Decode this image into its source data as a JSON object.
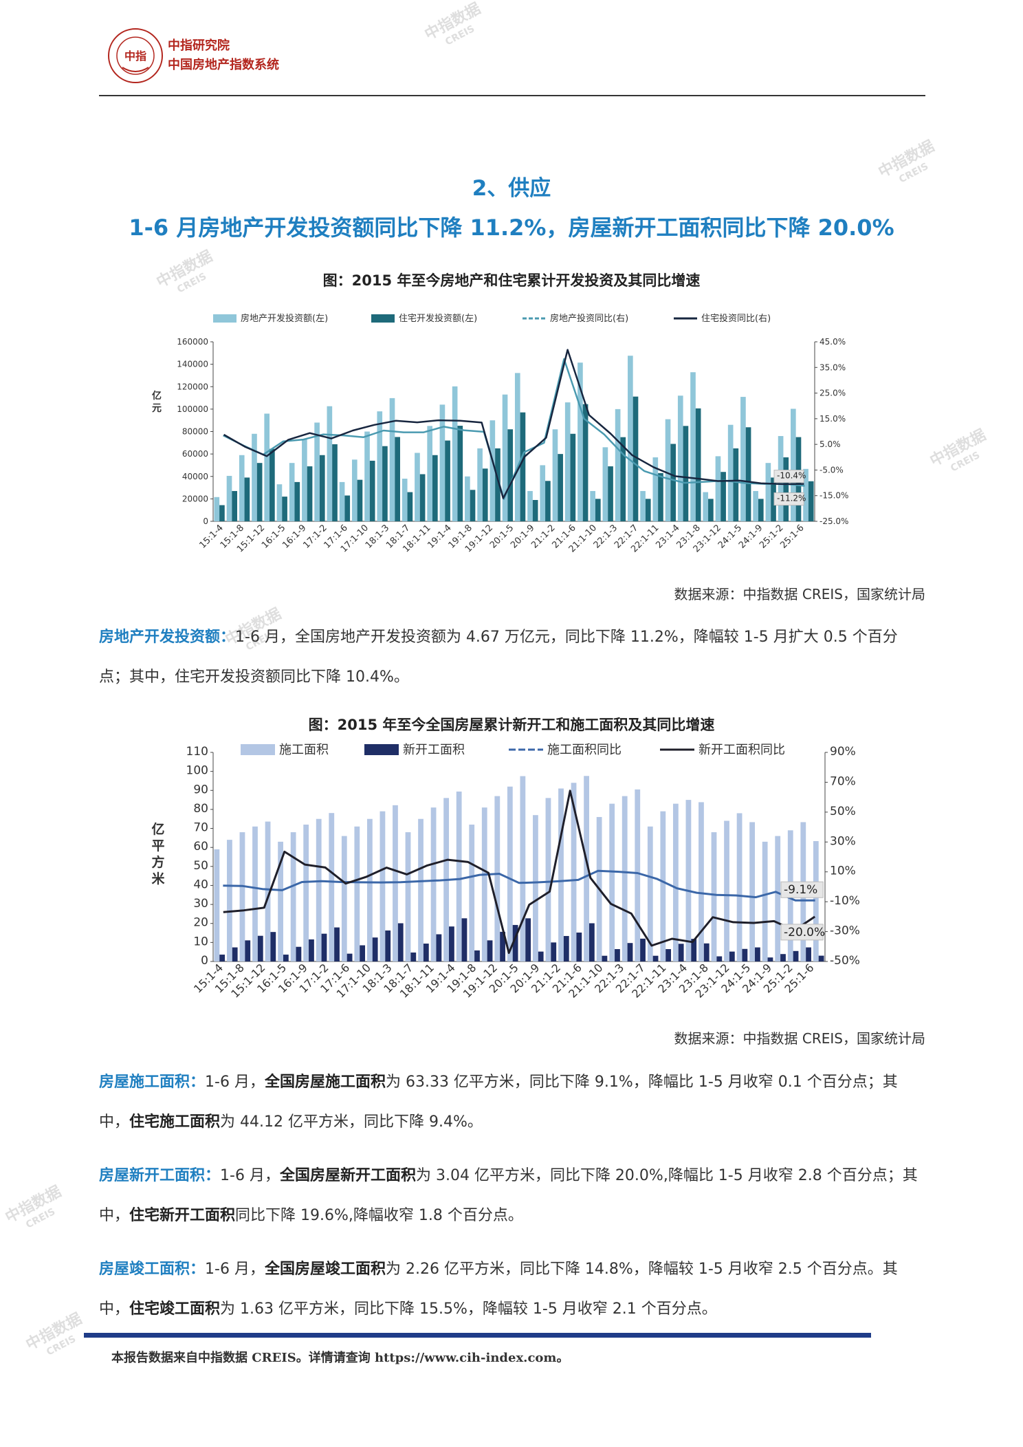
{
  "header": {
    "org_line1": "中指研究院",
    "org_line2": "中国房地产指数系统",
    "logo_text": "中指",
    "logo_ring_text": "CHINA INDEX ACADEMY"
  },
  "watermark": {
    "main": "中指数据",
    "sub": "CREIS"
  },
  "section": {
    "title": "2、供应",
    "headline": "1-6 月房地产开发投资额同比下降 11.2%，房屋新开工面积同比下降 20.0%"
  },
  "colors": {
    "accent_blue": "#1f7fc0",
    "logo_red": "#b3261e",
    "footer_bar": "#1f3c88"
  },
  "figure1": {
    "title": "图：2015 年至今房地产和住宅累计开发投资及其同比增速",
    "source": "数据来源：中指数据 CREIS，国家统计局",
    "chart_data": {
      "type": "bar",
      "legend": [
        "房地产开发投资额(左)",
        "住宅开发投资额(左)",
        "房地产投资同比(右)",
        "住宅投资同比(右)"
      ],
      "ylabel": "亿元",
      "y_ticks": [
        "0",
        "20000",
        "40000",
        "60000",
        "80000",
        "100000",
        "120000",
        "140000",
        "160000"
      ],
      "y2_ticks": [
        "-25.0%",
        "-15.0%",
        "-5.0%",
        "5.0%",
        "15.0%",
        "25.0%",
        "35.0%",
        "45.0%"
      ],
      "ylim": [
        0,
        160000
      ],
      "y2lim": [
        -25,
        45
      ],
      "x_ticks": [
        "15:1-4",
        "15:1-8",
        "15:1-12",
        "16:1-5",
        "16:1-9",
        "17:1-2",
        "17:1-6",
        "17:1-10",
        "18:1-3",
        "18:1-7",
        "18:1-11",
        "19:1-4",
        "19:1-8",
        "19:1-12",
        "20:1-5",
        "20:1-9",
        "21:1-2",
        "21:1-6",
        "21:1-10",
        "22:1-3",
        "22:1-7",
        "22:1-11",
        "23:1-4",
        "23:1-8",
        "23:1-12",
        "24:1-5",
        "24:1-9",
        "25:1-2",
        "25:1-6"
      ],
      "annotations": [
        "-10.4%",
        "-11.2%"
      ],
      "series": [
        {
          "name": "房地产开发投资额(左)",
          "values": [
            21600,
            40500,
            59000,
            78000,
            95979,
            33000,
            52000,
            73000,
            88000,
            102581,
            35000,
            55000,
            80000,
            98000,
            109799,
            38000,
            61000,
            85000,
            104000,
            120264,
            40000,
            65000,
            90000,
            113000,
            132194,
            27000,
            50000,
            82000,
            106000,
            141443,
            27000,
            66000,
            100000,
            147602,
            27000,
            57000,
            91000,
            112000,
            132895,
            26000,
            58000,
            86000,
            110913,
            27000,
            52000,
            76000,
            100280,
            46700
          ]
        },
        {
          "name": "住宅开发投资额(左)",
          "values": [
            14400,
            27000,
            39000,
            52000,
            64595,
            22000,
            35000,
            49000,
            59000,
            68704,
            23000,
            37000,
            54000,
            67000,
            75148,
            26000,
            42000,
            59000,
            72000,
            85192,
            28000,
            47000,
            65000,
            82000,
            97071,
            19000,
            36000,
            60000,
            78000,
            104446,
            20000,
            49000,
            75000,
            111173,
            20000,
            43000,
            69000,
            85000,
            100646,
            20000,
            44000,
            65000,
            83820,
            20000,
            39000,
            57000,
            75039,
            35700
          ]
        },
        {
          "name": "房地产投资同比(右)",
          "values": [
            8.5,
            4.6,
            1.0,
            6.2,
            6.9,
            8.9,
            8.5,
            7.8,
            10.4,
            9.7,
            9.7,
            11.9,
            10.5,
            9.9,
            -16.3,
            1.9,
            5.6,
            38.3,
            15.0,
            8.9,
            0.7,
            -5.4,
            -8.0,
            -10.0,
            -9.6,
            -9.1,
            -10.1,
            -10.4,
            -10.4,
            -11.2
          ]
        },
        {
          "name": "住宅投资同比(右)",
          "values": [
            8.8,
            4.0,
            0.4,
            6.8,
            9.4,
            7.3,
            10.4,
            12.6,
            14.2,
            13.6,
            14.4,
            14.2,
            13.5,
            -16.0,
            0.2,
            7.6,
            41.9,
            16.4,
            9.2,
            0.8,
            -3.9,
            -7.4,
            -8.3,
            -9.3,
            -9.1,
            -10.2,
            -10.5,
            -10.4
          ]
        }
      ]
    }
  },
  "para1": {
    "lead": "房地产开发投资额：",
    "text": "1-6 月，全国房地产开发投资额为 4.67 万亿元，同比下降 11.2%，降幅较 1-5 月扩大 0.5 个百分点；其中，住宅开发投资额同比下降 10.4%。"
  },
  "figure2": {
    "title": "图：2015 年至今全国房屋累计新开工和施工面积及其同比增速",
    "source": "数据来源：中指数据 CREIS，国家统计局",
    "chart_data": {
      "type": "bar",
      "legend": [
        "施工面积",
        "新开工面积",
        "施工面积同比",
        "新开工面积同比"
      ],
      "ylabel": "亿平方米",
      "y_ticks": [
        "0",
        "10",
        "20",
        "30",
        "40",
        "50",
        "60",
        "70",
        "80",
        "90",
        "100",
        "110"
      ],
      "y2_ticks": [
        "-50%",
        "-30%",
        "-10%",
        "10%",
        "30%",
        "50%",
        "70%",
        "90%"
      ],
      "ylim": [
        0,
        110
      ],
      "y2lim": [
        -50,
        90
      ],
      "x_ticks": [
        "15:1-4",
        "15:1-8",
        "15:1-12",
        "16:1-5",
        "16:1-9",
        "17:1-2",
        "17:1-6",
        "17:1-10",
        "18:1-3",
        "18:1-7",
        "18:1-11",
        "19:1-4",
        "19:1-8",
        "19:1-12",
        "20:1-5",
        "20:1-9",
        "21:1-2",
        "21:1-6",
        "21:1-10",
        "22:1-3",
        "22:1-7",
        "22:1-11",
        "23:1-4",
        "23:1-8",
        "23:1-12",
        "24:1-5",
        "24:1-9",
        "25:1-2",
        "25:1-6"
      ],
      "annotations": [
        "-9.1%",
        "-20.0%"
      ],
      "series": [
        {
          "name": "施工面积",
          "values": [
            59,
            64,
            68,
            71,
            73.6,
            63,
            68,
            72,
            75,
            78.1,
            66,
            71,
            75,
            79,
            82.2,
            68,
            75,
            81,
            86,
            89.4,
            72,
            81,
            87,
            92,
            97.5,
            77,
            86,
            91,
            94,
            97.6,
            76,
            83,
            87,
            90.5,
            71,
            79,
            83,
            85,
            83.8,
            68,
            74,
            78,
            73.3,
            63,
            66,
            69,
            73.3,
            63.33
          ]
        },
        {
          "name": "新开工面积",
          "values": [
            3.6,
            7.4,
            11.1,
            13.5,
            15.5,
            3.6,
            7.7,
            11.6,
            14.6,
            17.9,
            4.1,
            8.5,
            12.6,
            16.3,
            20.1,
            4.7,
            9.4,
            14.3,
            18.4,
            22.7,
            5.8,
            11.1,
            15.6,
            19.2,
            22.7,
            5.2,
            10.0,
            13.4,
            15.2,
            20.1,
            3.0,
            6.5,
            9.7,
            12.0,
            3.0,
            6.5,
            9.3,
            11.9,
            9.5,
            2.7,
            5.2,
            6.6,
            7.4,
            2.1,
            3.9,
            5.5,
            7.4,
            3.04
          ]
        },
        {
          "name": "施工面积同比",
          "values": [
            0.8,
            0.5,
            -1.5,
            -2.3,
            3.2,
            3.8,
            3.2,
            3.0,
            2.9,
            3.1,
            3.7,
            4.3,
            5.2,
            8.0,
            8.7,
            2.6,
            3.0,
            3.7,
            4.6,
            10.7,
            10.1,
            9.2,
            5.2,
            -1.0,
            -4.0,
            -5.4,
            -5.8,
            -7.0,
            -3.4,
            -9.1,
            -9.1
          ]
        },
        {
          "name": "新开工面积同比",
          "values": [
            -17.0,
            -15.8,
            -14.0,
            23.5,
            14.9,
            12.9,
            2.2,
            6.6,
            12.8,
            8.3,
            14.3,
            18.1,
            16.6,
            9.3,
            -44.3,
            -12.0,
            -3.2,
            64.3,
            6.0,
            -11.4,
            -17.9,
            -39.4,
            -34.8,
            -37.0,
            -20.4,
            -23.7,
            -24.2,
            -23.0,
            -29.2,
            -20.0
          ]
        }
      ]
    }
  },
  "para2": {
    "lead": "房屋施工面积：",
    "p1": "1-6 月，",
    "b1": "全国房屋施工面积",
    "p2": "为 63.33 亿平方米，同比下降 9.1%，降幅比 1-5 月收窄 0.1 个百分点；其中，",
    "b2": "住宅施工面积",
    "p3": "为 44.12 亿平方米，同比下降 9.4%。"
  },
  "para3": {
    "lead": "房屋新开工面积：",
    "p1": "1-6 月，",
    "b1": "全国房屋新开工面积",
    "p2": "为 3.04 亿平方米，同比下降 20.0%,降幅比 1-5 月收窄 2.8 个百分点；其中，",
    "b2": "住宅新开工面积",
    "p3": "同比下降 19.6%,降幅收窄 1.8 个百分点。"
  },
  "para4": {
    "lead": "房屋竣工面积：",
    "p1": "1-6 月，",
    "b1": "全国房屋竣工面积",
    "p2": "为 2.26 亿平方米，同比下降 14.8%，降幅较 1-5 月收窄 2.5 个百分点。其中，",
    "b2": "住宅竣工面积",
    "p3": "为 1.63 亿平方米，同比下降 15.5%，降幅较 1-5 月收窄 2.1 个百分点。"
  },
  "footer": {
    "text": "本报告数据来自中指数据 CREIS。详情请查询 https://www.cih-index.com。"
  }
}
